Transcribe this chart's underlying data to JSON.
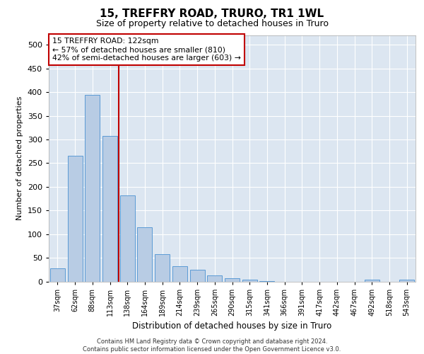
{
  "title1": "15, TREFFRY ROAD, TRURO, TR1 1WL",
  "title2": "Size of property relative to detached houses in Truro",
  "xlabel": "Distribution of detached houses by size in Truro",
  "ylabel": "Number of detached properties",
  "categories": [
    "37sqm",
    "62sqm",
    "88sqm",
    "113sqm",
    "138sqm",
    "164sqm",
    "189sqm",
    "214sqm",
    "239sqm",
    "265sqm",
    "290sqm",
    "315sqm",
    "341sqm",
    "366sqm",
    "391sqm",
    "417sqm",
    "442sqm",
    "467sqm",
    "492sqm",
    "518sqm",
    "543sqm"
  ],
  "values": [
    28,
    265,
    395,
    308,
    182,
    115,
    57,
    32,
    24,
    13,
    6,
    4,
    1,
    0,
    0,
    0,
    0,
    0,
    4,
    0,
    4
  ],
  "bar_color": "#b8cce4",
  "bar_edge_color": "#5b9bd5",
  "ylim": [
    0,
    520
  ],
  "yticks": [
    0,
    50,
    100,
    150,
    200,
    250,
    300,
    350,
    400,
    450,
    500
  ],
  "vline_color": "#c00000",
  "vline_pos": 3.5,
  "annotation_title": "15 TREFFRY ROAD: 122sqm",
  "annotation_line1": "← 57% of detached houses are smaller (810)",
  "annotation_line2": "42% of semi-detached houses are larger (603) →",
  "annotation_box_color": "#c00000",
  "footer1": "Contains HM Land Registry data © Crown copyright and database right 2024.",
  "footer2": "Contains public sector information licensed under the Open Government Licence v3.0.",
  "bg_color": "#dce6f1",
  "title1_fontsize": 11,
  "title2_fontsize": 9
}
